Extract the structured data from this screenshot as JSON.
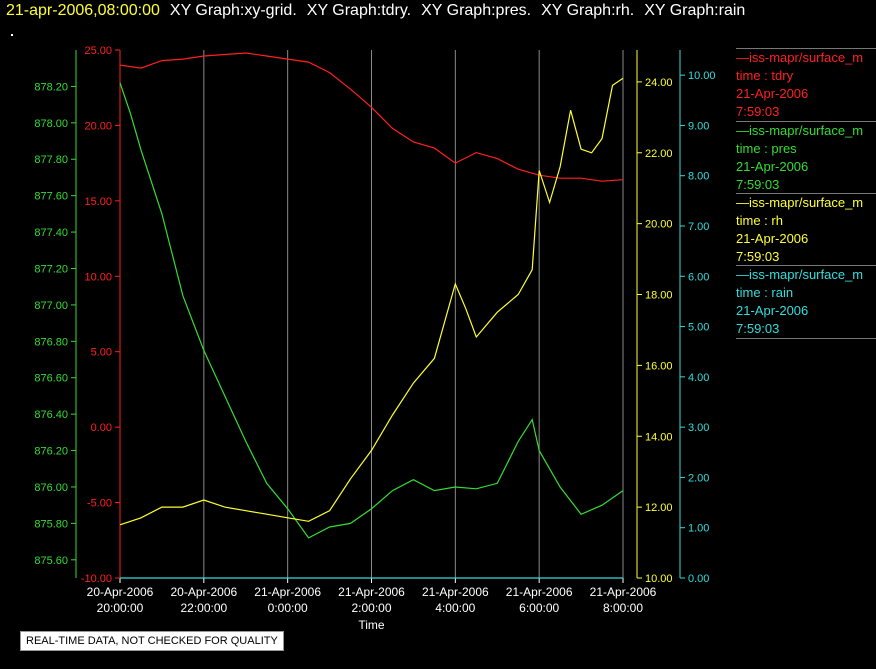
{
  "header": {
    "timestamp": "21-apr-2006,08:00:00",
    "graphs": [
      "XY Graph:xy-grid.",
      "XY Graph:tdry.",
      "XY Graph:pres.",
      "XY Graph:rh.",
      "XY Graph:rain"
    ]
  },
  "notice": "REAL-TIME DATA, NOT CHECKED FOR QUALITY",
  "legend": [
    {
      "name": "—iss-mapr/surface_m",
      "line2": "time : tdry",
      "line3": "21-Apr-2006",
      "line4": "7:59:03",
      "color": "#ff2020"
    },
    {
      "name": "—iss-mapr/surface_m",
      "line2": "time : pres",
      "line3": "21-Apr-2006",
      "line4": "7:59:03",
      "color": "#33dd33"
    },
    {
      "name": "—iss-mapr/surface_m",
      "line2": "time : rh",
      "line3": "21-Apr-2006",
      "line4": "7:59:03",
      "color": "#ffff33"
    },
    {
      "name": "—iss-mapr/surface_m",
      "line2": "time : rain",
      "line3": "21-Apr-2006",
      "line4": "7:59:03",
      "color": "#33dddd"
    }
  ],
  "chart_data": {
    "type": "line",
    "xlabel": "Time",
    "x_ticks": [
      {
        "date": "20-Apr-2006",
        "time": "20:00:00"
      },
      {
        "date": "20-Apr-2006",
        "time": "22:00:00"
      },
      {
        "date": "21-Apr-2006",
        "time": "0:00:00"
      },
      {
        "date": "21-Apr-2006",
        "time": "2:00:00"
      },
      {
        "date": "21-Apr-2006",
        "time": "4:00:00"
      },
      {
        "date": "21-Apr-2006",
        "time": "6:00:00"
      },
      {
        "date": "21-Apr-2006",
        "time": "8:00:00"
      }
    ],
    "xlim": [
      "2006-04-20 20:00",
      "2006-04-21 08:00"
    ],
    "grid": true,
    "axes": {
      "tdry": {
        "color": "#ff2020",
        "ylim": [
          -10,
          25
        ],
        "ticks": [
          "25.00",
          "20.00",
          "15.00",
          "10.00",
          "5.00",
          "0.00",
          "-5.00",
          "-10.00"
        ]
      },
      "pres": {
        "color": "#33dd33",
        "ylim": [
          875.5,
          878.4
        ],
        "ticks": [
          "878.20",
          "878.00",
          "877.80",
          "877.60",
          "877.40",
          "877.20",
          "877.00",
          "876.80",
          "876.60",
          "876.40",
          "876.20",
          "876.00",
          "875.80",
          "875.60"
        ]
      },
      "rh": {
        "color": "#ffff33",
        "ylim": [
          10,
          24.9
        ],
        "ticks": [
          "24.00",
          "22.00",
          "20.00",
          "18.00",
          "16.00",
          "14.00",
          "12.00",
          "10.00"
        ]
      },
      "rain": {
        "color": "#33dddd",
        "ylim": [
          0,
          10.5
        ],
        "ticks": [
          "10.00",
          "9.00",
          "8.00",
          "7.00",
          "6.00",
          "5.00",
          "4.00",
          "3.00",
          "2.00",
          "1.00",
          "0.00"
        ]
      }
    },
    "series": [
      {
        "name": "tdry",
        "axis": "tdry",
        "color": "#ff2020",
        "x": [
          "2006-04-20 20:00",
          "2006-04-20 20:30",
          "2006-04-20 21:00",
          "2006-04-20 21:30",
          "2006-04-20 22:00",
          "2006-04-20 22:30",
          "2006-04-20 23:00",
          "2006-04-20 23:30",
          "2006-04-21 00:00",
          "2006-04-21 00:30",
          "2006-04-21 01:00",
          "2006-04-21 01:30",
          "2006-04-21 02:00",
          "2006-04-21 02:30",
          "2006-04-21 03:00",
          "2006-04-21 03:30",
          "2006-04-21 04:00",
          "2006-04-21 04:30",
          "2006-04-21 05:00",
          "2006-04-21 05:30",
          "2006-04-21 06:00",
          "2006-04-21 06:30",
          "2006-04-21 07:00",
          "2006-04-21 07:30",
          "2006-04-21 08:00"
        ],
        "y": [
          24,
          23.8,
          24.3,
          24.4,
          24.6,
          24.7,
          24.8,
          24.6,
          24.4,
          24.2,
          23.5,
          22.4,
          21.2,
          19.8,
          18.9,
          18.5,
          17.5,
          18.2,
          17.8,
          17.1,
          16.7,
          16.5,
          16.5,
          16.3,
          16.4
        ]
      },
      {
        "name": "pres",
        "axis": "pres",
        "color": "#33dd33",
        "x": [
          "2006-04-20 20:00",
          "2006-04-20 20:15",
          "2006-04-20 20:30",
          "2006-04-20 21:00",
          "2006-04-20 21:30",
          "2006-04-20 22:00",
          "2006-04-20 22:30",
          "2006-04-20 23:00",
          "2006-04-20 23:30",
          "2006-04-21 00:00",
          "2006-04-21 00:30",
          "2006-04-21 01:00",
          "2006-04-21 01:30",
          "2006-04-21 02:00",
          "2006-04-21 02:30",
          "2006-04-21 03:00",
          "2006-04-21 03:30",
          "2006-04-21 04:00",
          "2006-04-21 04:30",
          "2006-04-21 05:00",
          "2006-04-21 05:30",
          "2006-04-21 05:50",
          "2006-04-21 06:00",
          "2006-04-21 06:30",
          "2006-04-21 07:00",
          "2006-04-21 07:30",
          "2006-04-21 08:00"
        ],
        "y": [
          878.22,
          878.05,
          877.85,
          877.5,
          877.05,
          876.75,
          876.5,
          876.25,
          876.02,
          875.88,
          875.72,
          875.78,
          875.8,
          875.88,
          875.98,
          876.04,
          875.98,
          876.0,
          875.99,
          876.02,
          876.25,
          876.37,
          876.2,
          876.0,
          875.85,
          875.9,
          875.98
        ]
      },
      {
        "name": "rh",
        "axis": "rh",
        "color": "#ffff33",
        "x": [
          "2006-04-20 20:00",
          "2006-04-20 20:30",
          "2006-04-20 21:00",
          "2006-04-20 21:30",
          "2006-04-20 22:00",
          "2006-04-20 22:30",
          "2006-04-20 23:00",
          "2006-04-20 23:30",
          "2006-04-21 00:00",
          "2006-04-21 00:30",
          "2006-04-21 01:00",
          "2006-04-21 01:30",
          "2006-04-21 02:00",
          "2006-04-21 02:30",
          "2006-04-21 03:00",
          "2006-04-21 03:30",
          "2006-04-21 04:00",
          "2006-04-21 04:15",
          "2006-04-21 04:30",
          "2006-04-21 05:00",
          "2006-04-21 05:30",
          "2006-04-21 05:50",
          "2006-04-21 06:00",
          "2006-04-21 06:15",
          "2006-04-21 06:30",
          "2006-04-21 06:45",
          "2006-04-21 07:00",
          "2006-04-21 07:15",
          "2006-04-21 07:30",
          "2006-04-21 07:45",
          "2006-04-21 08:00"
        ],
        "y": [
          11.5,
          11.7,
          12.0,
          12.0,
          12.2,
          12.0,
          11.9,
          11.8,
          11.7,
          11.6,
          11.9,
          12.8,
          13.6,
          14.6,
          15.5,
          16.2,
          18.3,
          17.6,
          16.8,
          17.5,
          18.0,
          18.7,
          21.5,
          20.6,
          21.6,
          23.2,
          22.1,
          22.0,
          22.4,
          23.9,
          24.1
        ]
      },
      {
        "name": "rain",
        "axis": "rain",
        "color": "#33dddd",
        "x": [
          "2006-04-20 20:00",
          "2006-04-21 08:00"
        ],
        "y": [
          0,
          0
        ]
      }
    ]
  }
}
